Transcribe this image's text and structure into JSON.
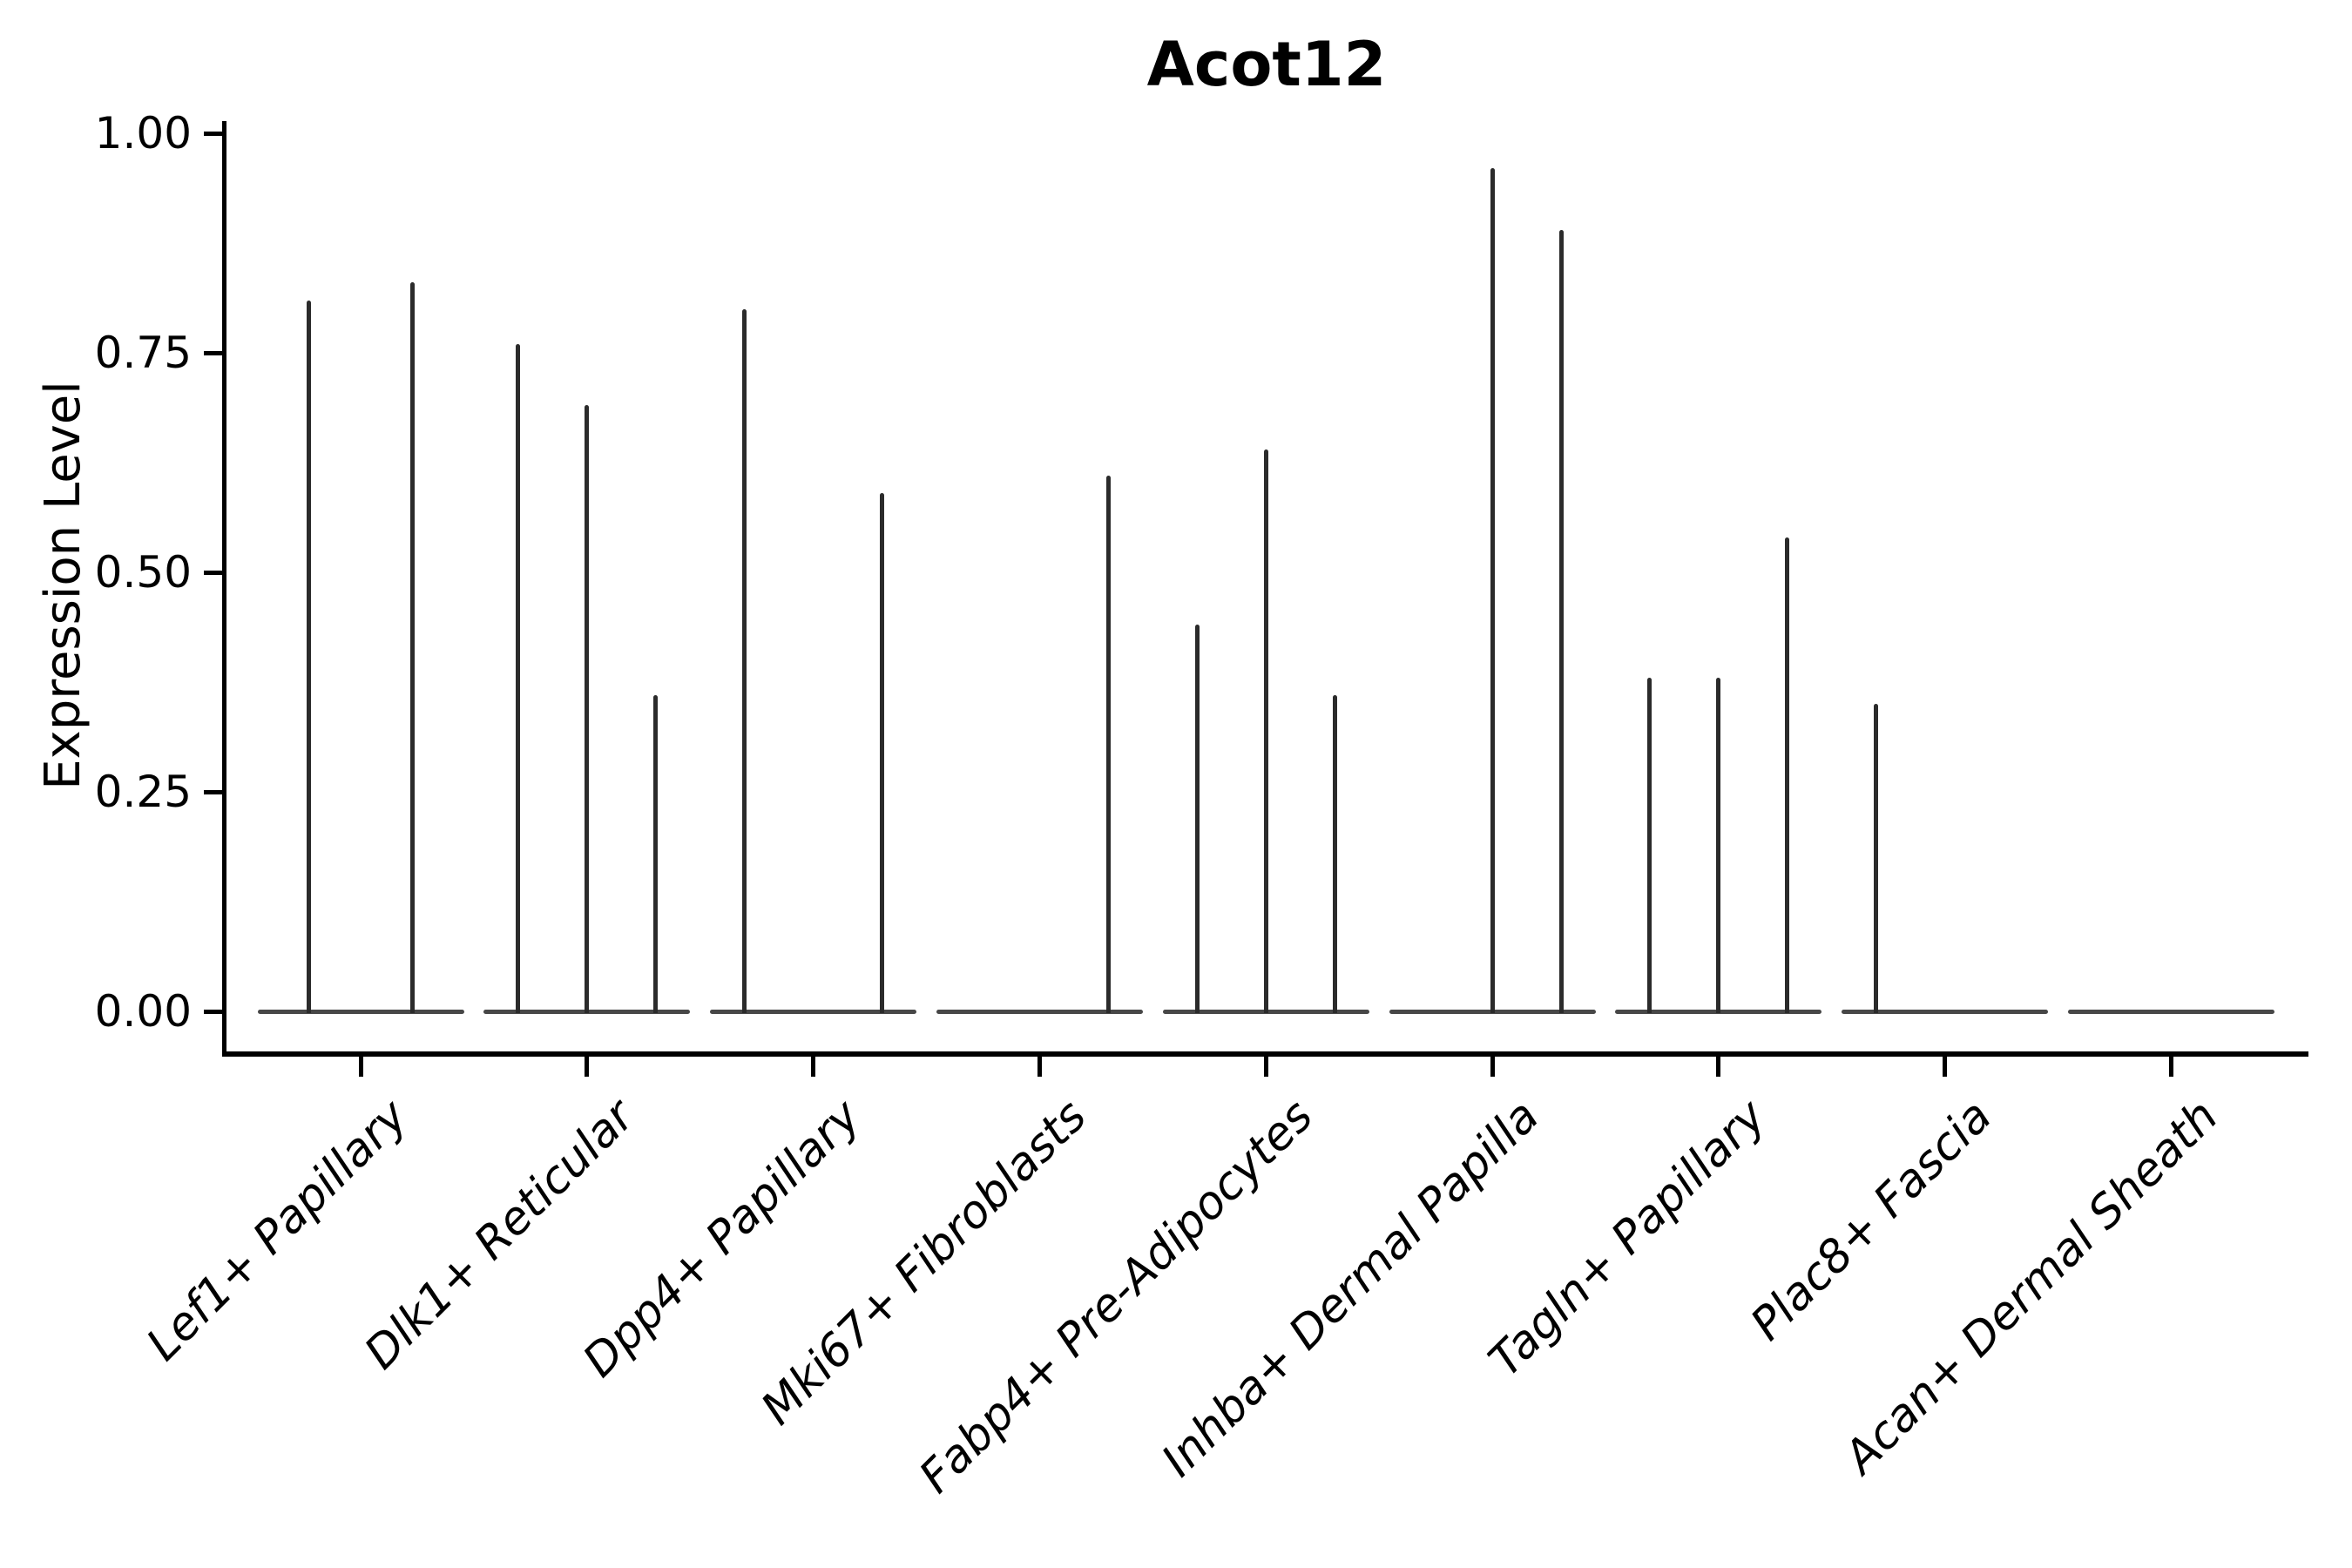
{
  "chart_data": {
    "type": "violin",
    "title": "Acot12",
    "xlabel": "",
    "ylabel": "Expression Level",
    "ylim": [
      0,
      1
    ],
    "ytick_values": [
      0,
      0.25,
      0.5,
      0.75,
      1
    ],
    "ytick_labels": [
      "0.00",
      "0.25",
      "0.50",
      "0.75",
      "1.00"
    ],
    "grid": false,
    "legend": "none",
    "categories": [
      "Lef1+ Papillary",
      "Dlk1+ Reticular",
      "Dpp4+ Papillary",
      "Mki67+ Fibroblasts",
      "Fabp4+ Pre-Adipocytes",
      "Inhba+ Dermal Papilla",
      "Tagln+ Papillary",
      "Plac8+ Fascia",
      "Acan+ Dermal Sheath"
    ],
    "series": [
      {
        "category": "Lef1+ Papillary",
        "violin_peaks": [
          0.81,
          0.83
        ]
      },
      {
        "category": "Dlk1+ Reticular",
        "violin_peaks": [
          0.76,
          0.69,
          0.36
        ]
      },
      {
        "category": "Dpp4+ Papillary",
        "violin_peaks": [
          0.8,
          0,
          0.59
        ]
      },
      {
        "category": "Mki67+ Fibroblasts",
        "violin_peaks": [
          0,
          0,
          0.61
        ]
      },
      {
        "category": "Fabp4+ Pre-Adipocytes",
        "violin_peaks": [
          0.44,
          0.64,
          0.36
        ]
      },
      {
        "category": "Inhba+ Dermal Papilla",
        "violin_peaks": [
          0,
          0.96,
          0.89
        ]
      },
      {
        "category": "Tagln+ Papillary",
        "violin_peaks": [
          0.38,
          0.38,
          0.54
        ]
      },
      {
        "category": "Plac8+ Fascia",
        "violin_peaks": [
          0.35,
          0,
          0
        ]
      },
      {
        "category": "Acan+ Dermal Sheath",
        "violin_peaks": [
          0,
          0,
          0
        ]
      }
    ],
    "colors": {
      "spike": "#2b2b2b",
      "base": "#474747",
      "axis": "#000000",
      "text": "#000000"
    }
  }
}
